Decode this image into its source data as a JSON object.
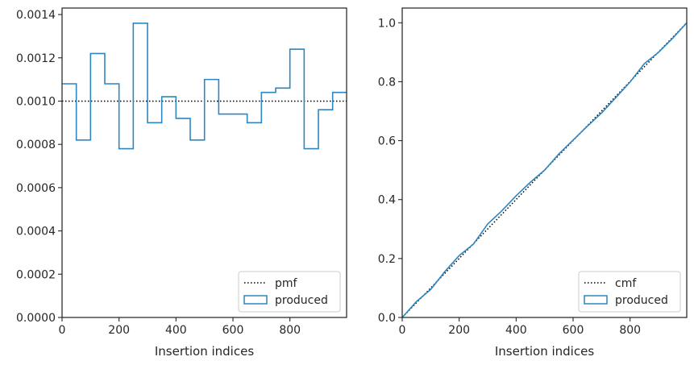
{
  "colors": {
    "produced": "#2e86c1",
    "reference": "#000000",
    "axis": "#262626"
  },
  "chart_data": [
    {
      "type": "histogram-step",
      "title": "",
      "xlabel": "Insertion indices",
      "ylabel": "",
      "xlim": [
        0,
        999
      ],
      "ylim": [
        0,
        0.00143
      ],
      "x_ticks": [
        "0",
        "200",
        "400",
        "600",
        "800"
      ],
      "x_tick_values": [
        0,
        200,
        400,
        600,
        800
      ],
      "y_ticks": [
        "0.0000",
        "0.0002",
        "0.0004",
        "0.0006",
        "0.0008",
        "0.0010",
        "0.0012",
        "0.0014"
      ],
      "y_tick_values": [
        0,
        0.0002,
        0.0004,
        0.0006,
        0.0008,
        0.001,
        0.0012,
        0.0014
      ],
      "legend_position": "bottom-right",
      "series": [
        {
          "name": "pmf",
          "style": "dotted",
          "x": [
            0,
            999
          ],
          "values": [
            0.001,
            0.001
          ]
        },
        {
          "name": "produced",
          "style": "step",
          "bin_edges": [
            0,
            50,
            100,
            150,
            200,
            250,
            300,
            350,
            400,
            450,
            500,
            550,
            600,
            650,
            700,
            750,
            800,
            850,
            900,
            950,
            999
          ],
          "values": [
            0.00108,
            0.00082,
            0.00122,
            0.00108,
            0.00078,
            0.00136,
            0.0009,
            0.00102,
            0.00092,
            0.00082,
            0.0011,
            0.00094,
            0.00094,
            0.0009,
            0.00104,
            0.00106,
            0.00124,
            0.00078,
            0.00096,
            0.00104
          ]
        }
      ]
    },
    {
      "type": "line",
      "title": "",
      "xlabel": "Insertion indices",
      "ylabel": "",
      "xlim": [
        0,
        999
      ],
      "ylim": [
        0,
        1.05
      ],
      "x_ticks": [
        "0",
        "200",
        "400",
        "600",
        "800"
      ],
      "x_tick_values": [
        0,
        200,
        400,
        600,
        800
      ],
      "y_ticks": [
        "0.0",
        "0.2",
        "0.4",
        "0.6",
        "0.8",
        "1.0"
      ],
      "y_tick_values": [
        0,
        0.2,
        0.4,
        0.6,
        0.8,
        1.0
      ],
      "legend_position": "bottom-right",
      "series": [
        {
          "name": "cmf",
          "style": "dotted",
          "x": [
            0,
            999
          ],
          "values": [
            0,
            1.0
          ]
        },
        {
          "name": "produced",
          "style": "solid",
          "x": [
            0,
            50,
            100,
            150,
            200,
            250,
            300,
            350,
            400,
            450,
            500,
            550,
            600,
            650,
            700,
            750,
            800,
            850,
            900,
            950,
            999
          ],
          "values": [
            0,
            0.054,
            0.095,
            0.156,
            0.21,
            0.249,
            0.317,
            0.362,
            0.413,
            0.459,
            0.5,
            0.555,
            0.602,
            0.649,
            0.694,
            0.746,
            0.799,
            0.861,
            0.9,
            0.948,
            1.0
          ]
        }
      ]
    }
  ]
}
